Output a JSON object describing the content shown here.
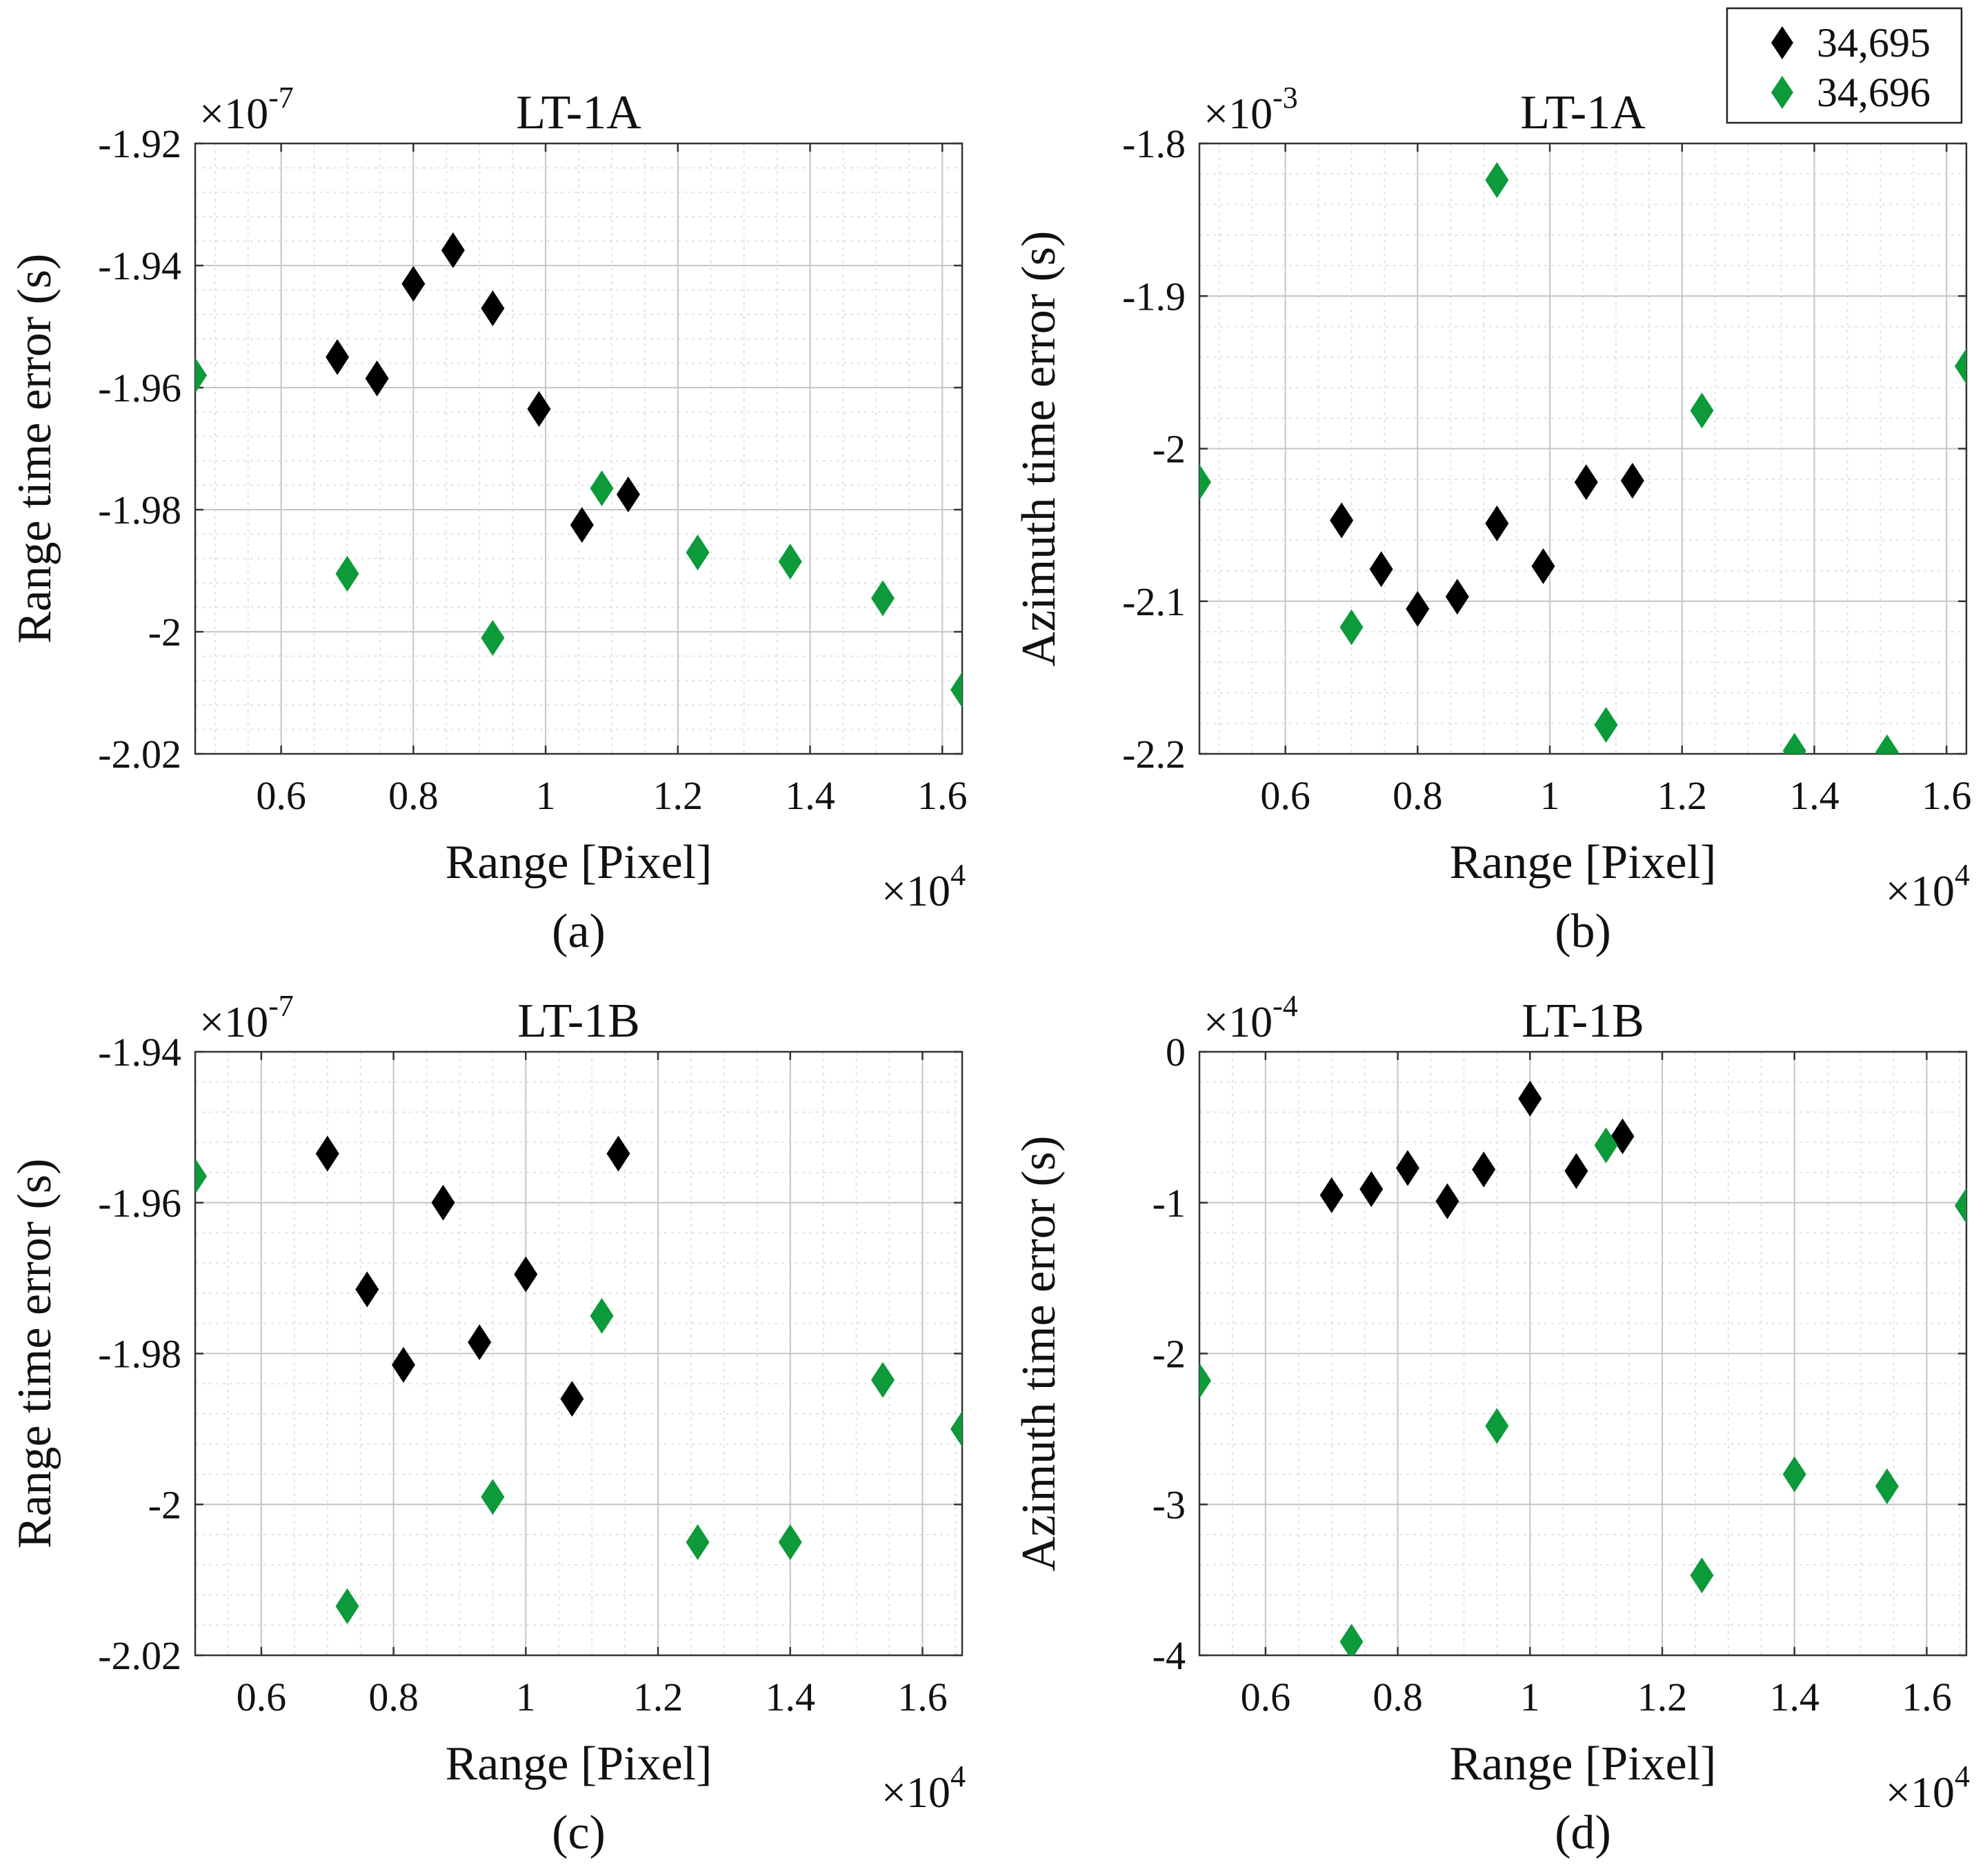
{
  "legend": {
    "entries": [
      {
        "label": "34,695",
        "color": "#000000"
      },
      {
        "label": "34,696",
        "color": "#0c9a3a"
      }
    ]
  },
  "chart_data": [
    {
      "type": "scatter",
      "title": "LT-1A",
      "caption": "(a)",
      "xlabel": "Range [Pixel]",
      "ylabel": "Range time error (s)",
      "x_multiplier": "×10",
      "x_exponent": "4",
      "y_multiplier": "×10",
      "y_exponent": "-7",
      "xlim": [
        0.47,
        1.63
      ],
      "ylim": [
        -2.02,
        -1.92
      ],
      "xticks": [
        0.6,
        0.8,
        1,
        1.2,
        1.4,
        1.6
      ],
      "xtick_labels": [
        "0.6",
        "0.8",
        "1",
        "1.2",
        "1.4",
        "1.6"
      ],
      "yticks": [
        -2.02,
        -2.0,
        -1.98,
        -1.96,
        -1.94,
        -1.92
      ],
      "ytick_labels": [
        "-2.02",
        "-2",
        "-1.98",
        "-1.96",
        "-1.94",
        "-1.92"
      ],
      "grid": true,
      "series": [
        {
          "name": "34,695",
          "color": "#000000",
          "x": [
            0.685,
            0.745,
            0.8,
            0.86,
            0.92,
            0.99,
            1.055,
            1.125
          ],
          "y": [
            -1.955,
            -1.9585,
            -1.943,
            -1.9375,
            -1.947,
            -1.9635,
            -1.9825,
            -1.9775
          ]
        },
        {
          "name": "34,696",
          "color": "#0c9a3a",
          "x": [
            0.47,
            0.7,
            0.92,
            1.085,
            1.23,
            1.37,
            1.51,
            1.63
          ],
          "y": [
            -1.958,
            -1.9905,
            -2.001,
            -1.9765,
            -1.987,
            -1.9885,
            -1.9945,
            -2.0095
          ]
        }
      ]
    },
    {
      "type": "scatter",
      "title": "LT-1A",
      "caption": "(b)",
      "xlabel": "Range [Pixel]",
      "ylabel": "Azimuth time error (s)",
      "x_multiplier": "×10",
      "x_exponent": "4",
      "y_multiplier": "×10",
      "y_exponent": "-3",
      "xlim": [
        0.47,
        1.63
      ],
      "ylim": [
        -2.2,
        -1.8
      ],
      "xticks": [
        0.6,
        0.8,
        1,
        1.2,
        1.4,
        1.6
      ],
      "xtick_labels": [
        "0.6",
        "0.8",
        "1",
        "1.2",
        "1.4",
        "1.6"
      ],
      "yticks": [
        -2.2,
        -2.1,
        -2.0,
        -1.9,
        -1.8
      ],
      "ytick_labels": [
        "-2.2",
        "-2.1",
        "-2",
        "-1.9",
        "-1.8"
      ],
      "grid": true,
      "series": [
        {
          "name": "34,695",
          "color": "#000000",
          "x": [
            0.685,
            0.745,
            0.8,
            0.86,
            0.92,
            0.99,
            1.055,
            1.125
          ],
          "y": [
            -2.047,
            -2.079,
            -2.105,
            -2.097,
            -2.049,
            -2.077,
            -2.022,
            -2.021
          ]
        },
        {
          "name": "34,696",
          "color": "#0c9a3a",
          "x": [
            0.47,
            0.7,
            0.92,
            1.085,
            1.23,
            1.37,
            1.51,
            1.63
          ],
          "y": [
            -2.022,
            -2.117,
            -1.824,
            -2.181,
            -1.975,
            -2.198,
            -2.199,
            -1.946
          ]
        }
      ]
    },
    {
      "type": "scatter",
      "title": "LT-1B",
      "caption": "(c)",
      "xlabel": "Range [Pixel]",
      "ylabel": "Range time error (s)",
      "x_multiplier": "×10",
      "x_exponent": "4",
      "y_multiplier": "×10",
      "y_exponent": "-7",
      "xlim": [
        0.5,
        1.66
      ],
      "ylim": [
        -2.02,
        -1.94
      ],
      "xticks": [
        0.6,
        0.8,
        1,
        1.2,
        1.4,
        1.6
      ],
      "xtick_labels": [
        "0.6",
        "0.8",
        "1",
        "1.2",
        "1.4",
        "1.6"
      ],
      "yticks": [
        -2.02,
        -2.0,
        -1.98,
        -1.96,
        -1.94
      ],
      "ytick_labels": [
        "-2.02",
        "-2",
        "-1.98",
        "-1.96",
        "-1.94"
      ],
      "grid": true,
      "series": [
        {
          "name": "34,695",
          "color": "#000000",
          "x": [
            0.7,
            0.76,
            0.815,
            0.875,
            0.93,
            1.0,
            1.07,
            1.14
          ],
          "y": [
            -1.9535,
            -1.9715,
            -1.9815,
            -1.96,
            -1.9785,
            -1.9695,
            -1.986,
            -1.9535
          ]
        },
        {
          "name": "34,696",
          "color": "#0c9a3a",
          "x": [
            0.5,
            0.73,
            0.95,
            1.115,
            1.26,
            1.4,
            1.54,
            1.66
          ],
          "y": [
            -1.9565,
            -2.0135,
            -1.999,
            -1.975,
            -2.005,
            -2.005,
            -1.9835,
            -1.99
          ]
        }
      ]
    },
    {
      "type": "scatter",
      "title": "LT-1B",
      "caption": "(d)",
      "xlabel": "Range [Pixel]",
      "ylabel": "Azimuth time error (s)",
      "x_multiplier": "×10",
      "x_exponent": "4",
      "y_multiplier": "×10",
      "y_exponent": "-4",
      "xlim": [
        0.5,
        1.66
      ],
      "ylim": [
        -4,
        0
      ],
      "xticks": [
        0.6,
        0.8,
        1,
        1.2,
        1.4,
        1.6
      ],
      "xtick_labels": [
        "0.6",
        "0.8",
        "1",
        "1.2",
        "1.4",
        "1.6"
      ],
      "yticks": [
        -4,
        -3,
        -2,
        -1,
        0
      ],
      "ytick_labels": [
        "-4",
        "-3",
        "-2",
        "-1",
        "0"
      ],
      "grid": true,
      "series": [
        {
          "name": "34,695",
          "color": "#000000",
          "x": [
            0.7,
            0.76,
            0.815,
            0.875,
            0.93,
            1.0,
            1.07,
            1.14
          ],
          "y": [
            -0.95,
            -0.91,
            -0.77,
            -0.99,
            -0.78,
            -0.31,
            -0.79,
            -0.56
          ]
        },
        {
          "name": "34,696",
          "color": "#0c9a3a",
          "x": [
            0.5,
            0.73,
            0.95,
            1.115,
            1.26,
            1.4,
            1.54,
            1.66
          ],
          "y": [
            -2.18,
            -3.91,
            -2.48,
            -0.62,
            -3.47,
            -2.8,
            -2.88,
            -1.02
          ]
        }
      ]
    }
  ]
}
